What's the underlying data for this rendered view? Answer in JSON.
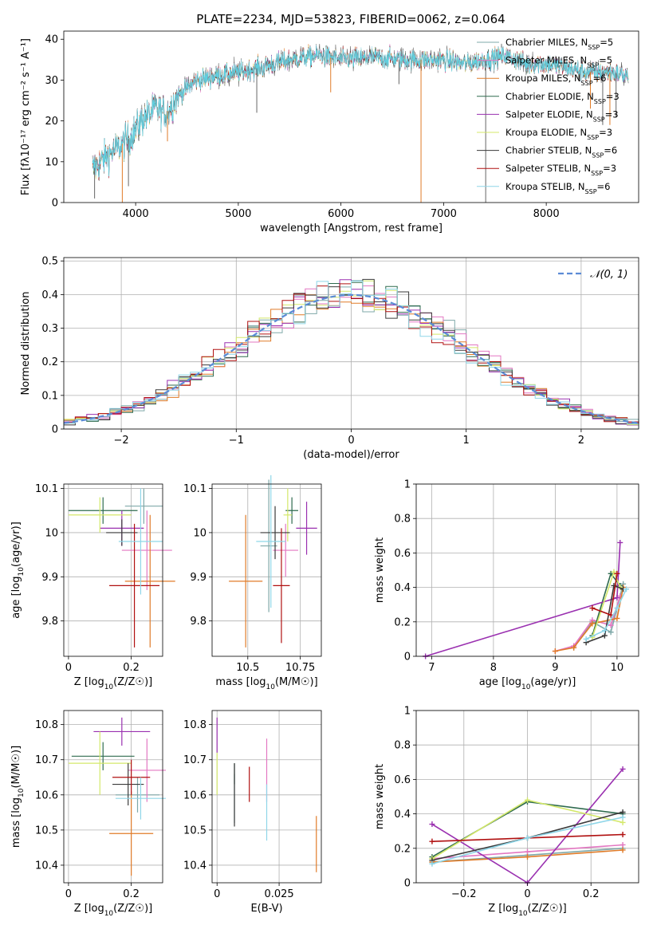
{
  "title": "PLATE=2234, MJD=53823, FIBERID=0062, z=0.064",
  "colors": {
    "series": [
      "#7fa8a8",
      "#e377c2",
      "#e07b28",
      "#2f6b4f",
      "#9a30b0",
      "#d4e86a",
      "#3a3a3a",
      "#b01010",
      "#8fd6e8"
    ],
    "gaussian": "#5b8bd6",
    "data_gray": "#666666",
    "data_cyan": "#5fd0e0"
  },
  "legend_spectrum": [
    {
      "model": "Chabrier MILES",
      "n_ssp": "5"
    },
    {
      "model": "Salpeter MILES",
      "n_ssp": "5"
    },
    {
      "model": "Kroupa MILES",
      "n_ssp": "6"
    },
    {
      "model": "Chabrier ELODIE",
      "n_ssp": "3"
    },
    {
      "model": "Salpeter ELODIE",
      "n_ssp": "3"
    },
    {
      "model": "Kroupa ELODIE",
      "n_ssp": "3"
    },
    {
      "model": "Chabrier STELIB",
      "n_ssp": "6"
    },
    {
      "model": "Salpeter STELIB",
      "n_ssp": "3"
    },
    {
      "model": "Kroupa STELIB",
      "n_ssp": "6"
    }
  ],
  "legend_hist": "𝒩(0, 1)",
  "chart_data": [
    {
      "type": "line",
      "title": "PLATE=2234, MJD=53823, FIBERID=0062, z=0.064",
      "xlabel": "wavelength [Angstrom, rest frame]",
      "ylabel": "Flux [fλ10⁻¹⁷ erg cm⁻² s⁻¹ A⁻¹]",
      "xlim": [
        3300,
        8900
      ],
      "ylim": [
        0,
        42
      ],
      "xticks": [
        4000,
        5000,
        6000,
        7000,
        8000
      ],
      "yticks": [
        0,
        10,
        20,
        30,
        40
      ],
      "continuum": [
        [
          3580,
          8
        ],
        [
          3700,
          11
        ],
        [
          3800,
          13
        ],
        [
          3900,
          15
        ],
        [
          3950,
          16
        ],
        [
          4050,
          20
        ],
        [
          4200,
          23
        ],
        [
          4300,
          22
        ],
        [
          4400,
          26
        ],
        [
          4600,
          30
        ],
        [
          4800,
          31
        ],
        [
          5000,
          32
        ],
        [
          5200,
          33
        ],
        [
          5500,
          35
        ],
        [
          5800,
          36
        ],
        [
          6000,
          35
        ],
        [
          6300,
          35.5
        ],
        [
          6600,
          35
        ],
        [
          6800,
          35
        ],
        [
          7000,
          35
        ],
        [
          7200,
          34
        ],
        [
          7400,
          35
        ],
        [
          7600,
          36
        ],
        [
          7800,
          34
        ],
        [
          8000,
          34
        ],
        [
          8200,
          33
        ],
        [
          8400,
          32
        ],
        [
          8600,
          32
        ],
        [
          8800,
          31
        ]
      ],
      "spikes": [
        [
          3600,
          1
        ],
        [
          3870,
          0
        ],
        [
          3930,
          4
        ],
        [
          4310,
          15
        ],
        [
          5180,
          22
        ],
        [
          5900,
          27
        ],
        [
          6565,
          29
        ],
        [
          6780,
          0
        ],
        [
          7410,
          0
        ],
        [
          8430,
          23
        ],
        [
          8550,
          19
        ],
        [
          8620,
          19
        ],
        [
          8680,
          21
        ]
      ],
      "grid": false
    },
    {
      "type": "bar",
      "xlabel": "(data-model)/error",
      "ylabel": "Normed distribution",
      "xlim": [
        -2.5,
        2.5
      ],
      "ylim": [
        0,
        0.51
      ],
      "xticks": [
        -2,
        -1,
        0,
        1,
        2
      ],
      "yticks": [
        0,
        0.1,
        0.2,
        0.3,
        0.4,
        0.5
      ],
      "bin_width": 0.1,
      "grid": true,
      "legend": "top-right"
    },
    {
      "type": "scatter",
      "xlabel": "Z [log10(Z/Z☉)]",
      "ylabel": "age  [log10(age/yr)]",
      "xlim": [
        -0.015,
        0.3
      ],
      "ylim": [
        9.72,
        10.11
      ],
      "xticks": [
        0.0,
        0.2
      ],
      "yticks": [
        9.8,
        9.9,
        10.0,
        10.1
      ],
      "points": [
        {
          "x": 0.24,
          "y": 10.06,
          "xerr": 0.06,
          "yerr": 0.04
        },
        {
          "x": 0.25,
          "y": 9.96,
          "xerr": 0.08,
          "yerr": 0.09
        },
        {
          "x": 0.26,
          "y": 9.89,
          "xerr": 0.08,
          "yerr": 0.15
        },
        {
          "x": 0.11,
          "y": 10.05,
          "xerr": 0.11,
          "yerr": 0.03
        },
        {
          "x": 0.17,
          "y": 10.01,
          "xerr": 0.07,
          "yerr": 0.04
        },
        {
          "x": 0.1,
          "y": 10.04,
          "xerr": 0.1,
          "yerr": 0.04
        },
        {
          "x": 0.17,
          "y": 10.0,
          "xerr": 0.05,
          "yerr": 0.03
        },
        {
          "x": 0.21,
          "y": 9.88,
          "xerr": 0.08,
          "yerr": 0.14
        },
        {
          "x": 0.23,
          "y": 9.98,
          "xerr": 0.07,
          "yerr": 0.12
        }
      ],
      "grid": true
    },
    {
      "type": "scatter",
      "xlabel": "mass [log10(M/M☉)]",
      "ylabel": "",
      "xlim": [
        10.33,
        10.85
      ],
      "ylim": [
        9.72,
        10.11
      ],
      "xticks": [
        10.5,
        10.75
      ],
      "yticks": [
        9.8,
        9.9,
        10.0,
        10.1
      ],
      "points": [
        {
          "x": 10.6,
          "y": 9.97,
          "xerr": 0.04,
          "yerr": 0.15
        },
        {
          "x": 10.68,
          "y": 9.96,
          "xerr": 0.06,
          "yerr": 0.06
        },
        {
          "x": 10.49,
          "y": 9.89,
          "xerr": 0.08,
          "yerr": 0.15
        },
        {
          "x": 10.71,
          "y": 10.05,
          "xerr": 0.03,
          "yerr": 0.03
        },
        {
          "x": 10.78,
          "y": 10.01,
          "xerr": 0.05,
          "yerr": 0.06
        },
        {
          "x": 10.69,
          "y": 10.04,
          "xerr": 0.02,
          "yerr": 0.06
        },
        {
          "x": 10.63,
          "y": 10.0,
          "xerr": 0.07,
          "yerr": 0.06
        },
        {
          "x": 10.66,
          "y": 9.88,
          "xerr": 0.04,
          "yerr": 0.13
        },
        {
          "x": 10.61,
          "y": 9.98,
          "xerr": 0.07,
          "yerr": 0.15
        }
      ],
      "grid": true
    },
    {
      "type": "line",
      "xlabel": "age  [log10(age/yr)]",
      "ylabel": "mass weight",
      "xlim": [
        6.75,
        10.35
      ],
      "ylim": [
        0,
        1.0
      ],
      "xticks": [
        7,
        8,
        9,
        10
      ],
      "yticks": [
        0.0,
        0.2,
        0.4,
        0.6,
        0.8,
        1.0
      ],
      "series": [
        {
          "x": [
            9.3,
            9.6,
            9.9,
            10.1
          ],
          "y": [
            0.05,
            0.2,
            0.14,
            0.42
          ]
        },
        {
          "x": [
            9.0,
            9.3,
            9.6,
            9.9,
            10.05
          ],
          "y": [
            0.03,
            0.06,
            0.21,
            0.18,
            0.35
          ]
        },
        {
          "x": [
            9.0,
            9.3,
            9.6,
            10.0,
            10.1
          ],
          "y": [
            0.03,
            0.05,
            0.19,
            0.22,
            0.4
          ]
        },
        {
          "x": [
            9.6,
            9.9,
            10.05
          ],
          "y": [
            0.12,
            0.48,
            0.41
          ]
        },
        {
          "x": [
            6.9,
            10.0,
            10.05
          ],
          "y": [
            0.0,
            0.34,
            0.66
          ]
        },
        {
          "x": [
            9.6,
            9.95,
            10.05
          ],
          "y": [
            0.11,
            0.49,
            0.4
          ]
        },
        {
          "x": [
            9.5,
            9.8,
            9.95,
            10.1
          ],
          "y": [
            0.08,
            0.12,
            0.41,
            0.39
          ]
        },
        {
          "x": [
            9.6,
            9.9,
            10.0
          ],
          "y": [
            0.28,
            0.24,
            0.48
          ]
        },
        {
          "x": [
            9.5,
            9.8,
            10.0,
            10.15
          ],
          "y": [
            0.1,
            0.15,
            0.28,
            0.39
          ]
        }
      ],
      "grid": true
    },
    {
      "type": "scatter",
      "xlabel": "Z [log10(Z/Z☉)]",
      "ylabel": "mass [log10(M/M☉)]",
      "xlim": [
        -0.015,
        0.3
      ],
      "ylim": [
        10.35,
        10.84
      ],
      "xticks": [
        0.0,
        0.2
      ],
      "yticks": [
        10.4,
        10.5,
        10.6,
        10.7,
        10.8
      ],
      "points": [
        {
          "x": 0.22,
          "y": 10.6,
          "xerr": 0.07,
          "yerr": 0.05
        },
        {
          "x": 0.25,
          "y": 10.67,
          "xerr": 0.06,
          "yerr": 0.09
        },
        {
          "x": 0.2,
          "y": 10.49,
          "xerr": 0.07,
          "yerr": 0.12
        },
        {
          "x": 0.11,
          "y": 10.71,
          "xerr": 0.1,
          "yerr": 0.04
        },
        {
          "x": 0.17,
          "y": 10.78,
          "xerr": 0.09,
          "yerr": 0.04
        },
        {
          "x": 0.1,
          "y": 10.69,
          "xerr": 0.1,
          "yerr": 0.09
        },
        {
          "x": 0.19,
          "y": 10.63,
          "xerr": 0.05,
          "yerr": 0.06
        },
        {
          "x": 0.2,
          "y": 10.65,
          "xerr": 0.06,
          "yerr": 0.05
        },
        {
          "x": 0.23,
          "y": 10.59,
          "xerr": 0.08,
          "yerr": 0.06
        }
      ],
      "grid": true
    },
    {
      "type": "scatter",
      "xlabel": "E(B-V)",
      "ylabel": "",
      "xlim": [
        -0.002,
        0.042
      ],
      "ylim": [
        10.35,
        10.84
      ],
      "xticks": [
        0.0,
        0.025
      ],
      "yticks": [
        10.4,
        10.5,
        10.6,
        10.7,
        10.8
      ],
      "points": [
        {
          "x": 0.007,
          "y": 10.59,
          "xerr": 0.0,
          "yerr": 0.07
        },
        {
          "x": 0.02,
          "y": 10.67,
          "xerr": 0.0,
          "yerr": 0.09
        },
        {
          "x": 0.04,
          "y": 10.46,
          "xerr": 0.0,
          "yerr": 0.08
        },
        {
          "x": 0.007,
          "y": 10.66,
          "xerr": 0.0,
          "yerr": 0.03
        },
        {
          "x": 0.0,
          "y": 10.77,
          "xerr": 0.0,
          "yerr": 0.05
        },
        {
          "x": 0.0,
          "y": 10.66,
          "xerr": 0.0,
          "yerr": 0.06
        },
        {
          "x": 0.007,
          "y": 10.6,
          "xerr": 0.0,
          "yerr": 0.09
        },
        {
          "x": 0.013,
          "y": 10.63,
          "xerr": 0.0,
          "yerr": 0.05
        },
        {
          "x": 0.02,
          "y": 10.55,
          "xerr": 0.0,
          "yerr": 0.08
        }
      ],
      "grid": true
    },
    {
      "type": "line",
      "xlabel": "Z [log10(Z/Z☉)]",
      "ylabel": "mass weight",
      "xlim": [
        -0.35,
        0.35
      ],
      "ylim": [
        0,
        1.0
      ],
      "xticks": [
        -0.2,
        0.0,
        0.2
      ],
      "yticks": [
        0.0,
        0.2,
        0.4,
        0.6,
        0.8,
        1.0
      ],
      "series": [
        {
          "x": [
            -0.3,
            0.0,
            0.3
          ],
          "y": [
            0.12,
            0.16,
            0.2
          ]
        },
        {
          "x": [
            -0.3,
            0.0,
            0.3
          ],
          "y": [
            0.14,
            0.18,
            0.22
          ]
        },
        {
          "x": [
            -0.3,
            0.0,
            0.3
          ],
          "y": [
            0.12,
            0.15,
            0.19
          ]
        },
        {
          "x": [
            -0.3,
            0.0,
            0.3
          ],
          "y": [
            0.15,
            0.47,
            0.4
          ]
        },
        {
          "x": [
            -0.3,
            0.0,
            0.3
          ],
          "y": [
            0.34,
            0.0,
            0.66
          ]
        },
        {
          "x": [
            -0.3,
            0.0,
            0.3
          ],
          "y": [
            0.14,
            0.48,
            0.35
          ]
        },
        {
          "x": [
            -0.3,
            0.0,
            0.3
          ],
          "y": [
            0.13,
            0.26,
            0.41
          ]
        },
        {
          "x": [
            -0.3,
            0.3
          ],
          "y": [
            0.24,
            0.28
          ]
        },
        {
          "x": [
            -0.3,
            0.0,
            0.3
          ],
          "y": [
            0.11,
            0.26,
            0.38
          ]
        }
      ],
      "grid": true
    }
  ]
}
